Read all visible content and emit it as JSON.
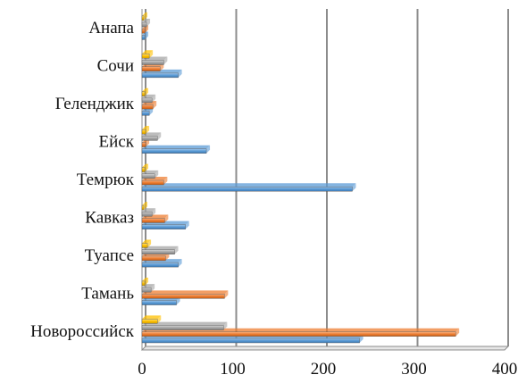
{
  "chart_data": {
    "type": "bar",
    "orientation": "horizontal",
    "categories": [
      "Анапа",
      "Сочи",
      "Геленджик",
      "Ейск",
      "Темрюк",
      "Кавказ",
      "Туапсе",
      "Тамань",
      "Новороссийск"
    ],
    "series": [
      {
        "color": "#5b9bd5",
        "values": [
          3,
          40,
          8,
          71,
          232,
          48,
          40,
          38,
          240
        ]
      },
      {
        "color": "#ed7d31",
        "values": [
          3,
          20,
          12,
          4,
          24,
          25,
          26,
          91,
          346
        ]
      },
      {
        "color": "#a5a5a5",
        "values": [
          5,
          24,
          11,
          17,
          14,
          11,
          36,
          10,
          90
        ]
      },
      {
        "color": "#ffc000",
        "values": [
          2,
          8,
          3,
          4,
          3,
          2,
          6,
          3,
          17
        ]
      }
    ],
    "xlim": [
      0,
      400
    ],
    "xticks": [
      0,
      100,
      200,
      300,
      400
    ],
    "xtick_labels": [
      "0",
      "100",
      "200",
      "300",
      "400"
    ],
    "grid": true,
    "bar_style": "3d"
  }
}
